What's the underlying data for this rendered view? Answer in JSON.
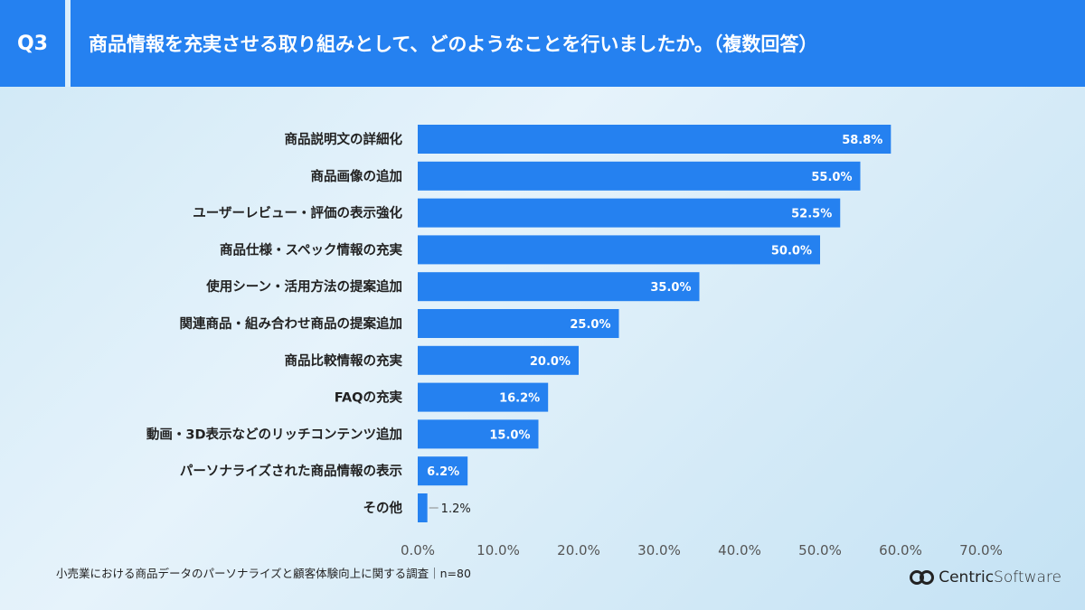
{
  "header": {
    "question": "Q3",
    "title": "商品情報を充実させる取り組みとして、どのようなことを行いましたか。（複数回答）"
  },
  "chart_data": {
    "type": "bar",
    "orientation": "horizontal",
    "categories": [
      "商品説明文の詳細化",
      "商品画像の追加",
      "ユーザーレビュー・評価の表示強化",
      "商品仕様・スペック情報の充実",
      "使用シーン・活用方法の提案追加",
      "関連商品・組み合わせ商品の提案追加",
      "商品比較情報の充実",
      "FAQの充実",
      "動画・3D表示などのリッチコンテンツ追加",
      "パーソナライズされた商品情報の表示",
      "その他"
    ],
    "values": [
      58.8,
      55.0,
      52.5,
      50.0,
      35.0,
      25.0,
      20.0,
      16.2,
      15.0,
      6.2,
      1.2
    ],
    "value_labels": [
      "58.8%",
      "55.0%",
      "52.5%",
      "50.0%",
      "35.0%",
      "25.0%",
      "20.0%",
      "16.2%",
      "15.0%",
      "6.2%",
      "1.2%"
    ],
    "xlim": [
      0,
      70
    ],
    "ticks": [
      "0.0%",
      "10.0%",
      "20.0%",
      "30.0%",
      "40.0%",
      "50.0%",
      "60.0%",
      "70.0%"
    ],
    "grid": false,
    "bar_color": "#2581f0"
  },
  "footer": {
    "source": "小売業における商品データのパーソナライズと顧客体験向上に関する調査｜n=80",
    "logo_text": "CentricSoftware"
  }
}
